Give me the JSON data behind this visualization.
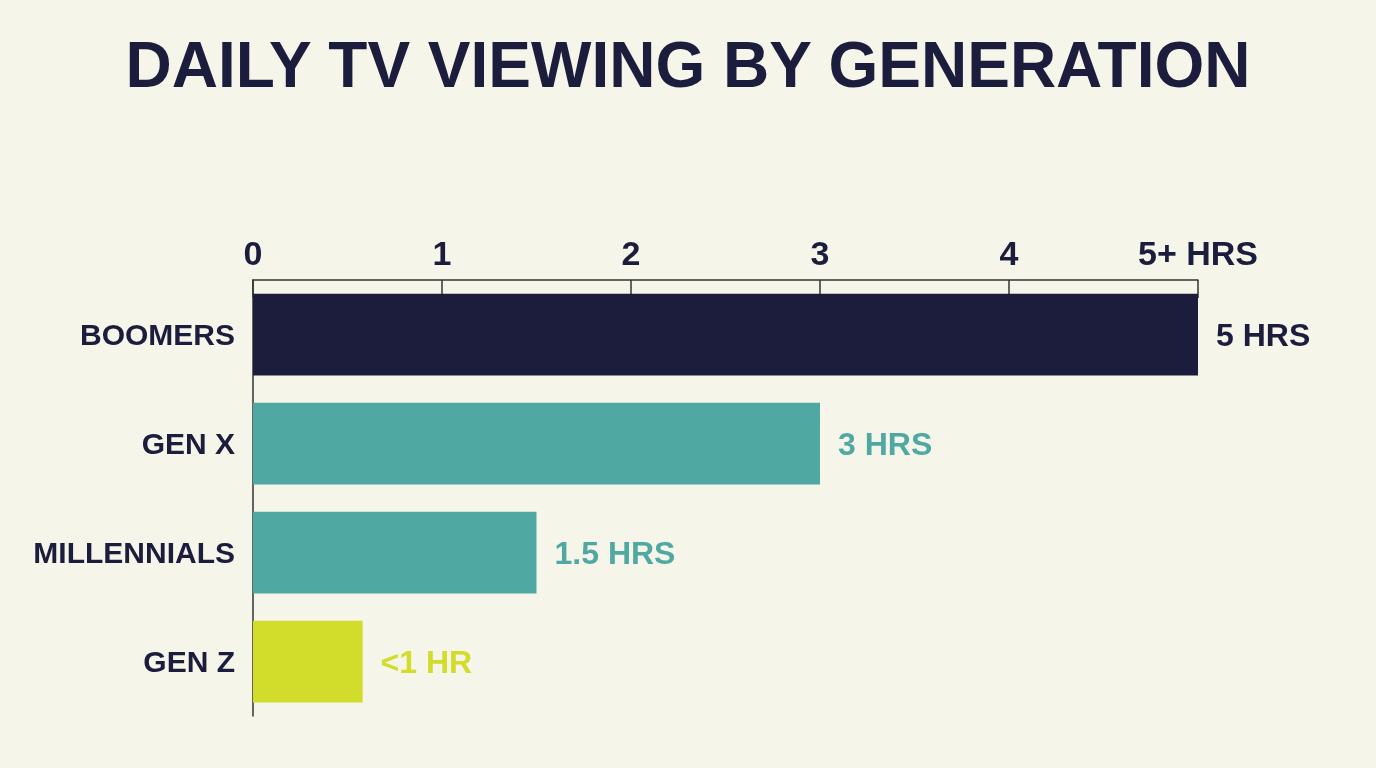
{
  "chart_data": {
    "type": "bar",
    "orientation": "horizontal",
    "title": "DAILY TV VIEWING BY GENERATION",
    "categories": [
      "BOOMERS",
      "GEN X",
      "MILLENNIALS",
      "GEN Z"
    ],
    "values": [
      5,
      3,
      1.5,
      0.58
    ],
    "colors": [
      "#1c1d3d",
      "#4fa9a2",
      "#4fa9a2",
      "#d2dc2a"
    ],
    "value_labels": [
      "5 HRS",
      "3 HRS",
      "1.5 HRS",
      "<1 HR"
    ],
    "xlim": [
      0,
      5
    ],
    "xticks": [
      0,
      1,
      2,
      3,
      4,
      {
        "value": 5,
        "label": "5+ HRS"
      }
    ],
    "grid": false
  }
}
